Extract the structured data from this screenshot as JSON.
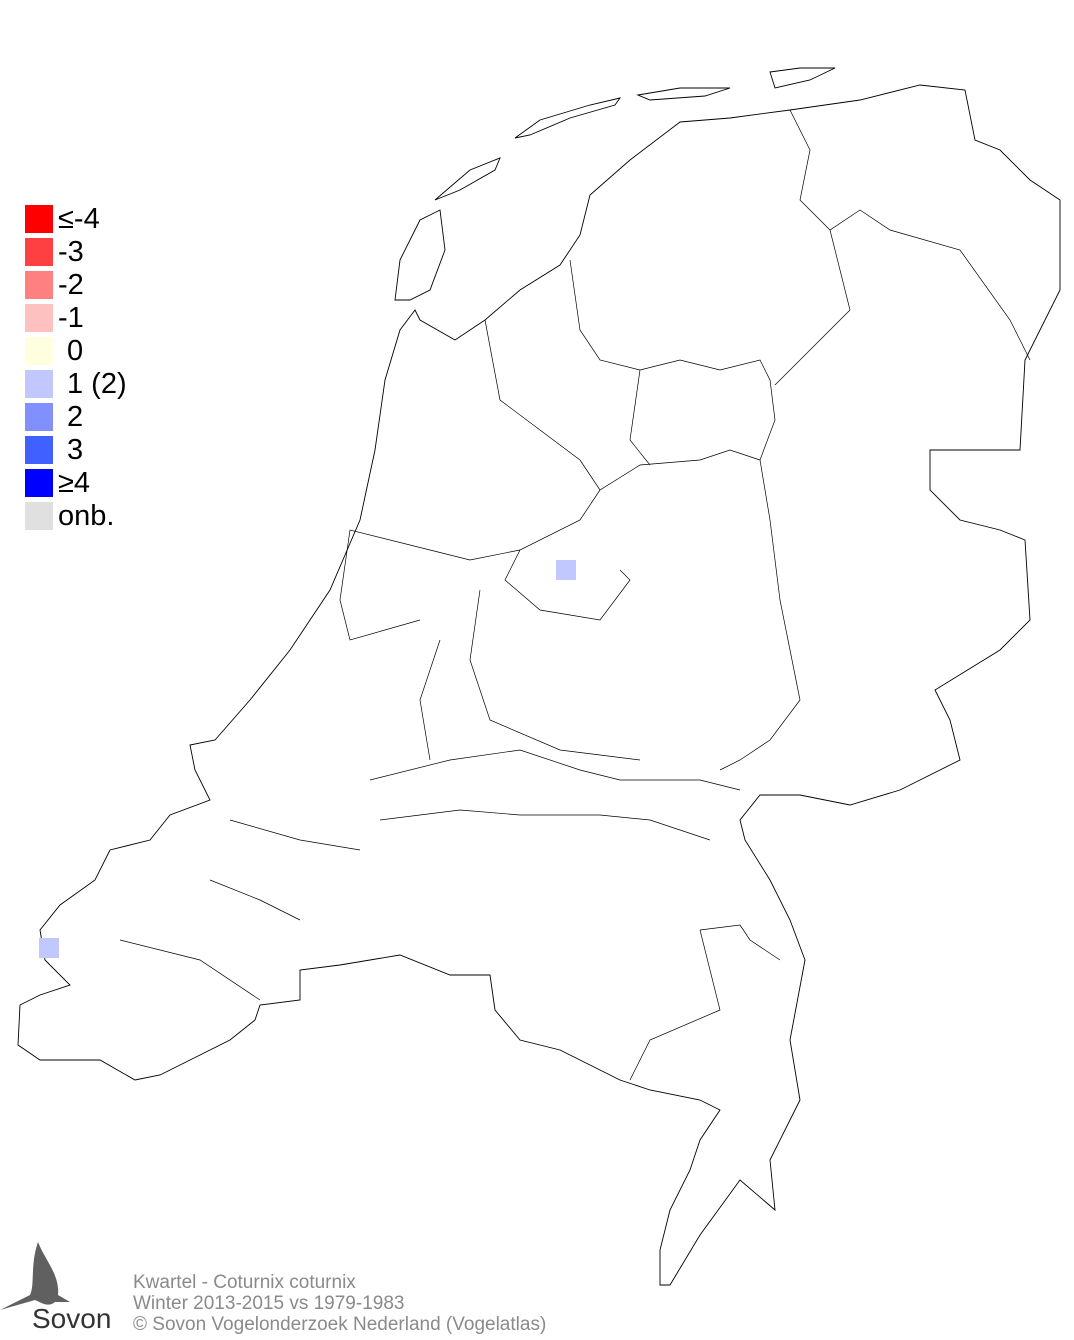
{
  "legend": {
    "items": [
      {
        "label": "≤-4",
        "color": "#ff0000",
        "indent": false
      },
      {
        "label": "-3",
        "color": "#ff4040",
        "indent": false
      },
      {
        "label": "-2",
        "color": "#ff8080",
        "indent": false
      },
      {
        "label": "-1",
        "color": "#ffc0c0",
        "indent": false
      },
      {
        "label": "0",
        "color": "#ffffe0",
        "indent": true
      },
      {
        "label": "1 (2)",
        "color": "#c0c8ff",
        "indent": true
      },
      {
        "label": "2",
        "color": "#8090ff",
        "indent": true
      },
      {
        "label": "3",
        "color": "#4060ff",
        "indent": true
      },
      {
        "label": "≥4",
        "color": "#0000ff",
        "indent": false
      },
      {
        "label": "onb.",
        "color": "#e0e0e0",
        "indent": false
      }
    ]
  },
  "map": {
    "cells": [
      {
        "region": "Flevoland",
        "value": 1,
        "color": "#c0c8ff"
      },
      {
        "region": "Zeeland",
        "value": 1,
        "color": "#c0c8ff"
      }
    ]
  },
  "footer": {
    "species": "Kwartel - Coturnix coturnix",
    "period": "Winter 2013-2015 vs 1979-1983",
    "copyright": "© Sovon Vogelonderzoek Nederland (Vogelatlas)"
  },
  "logo": {
    "text": "Sovon"
  }
}
